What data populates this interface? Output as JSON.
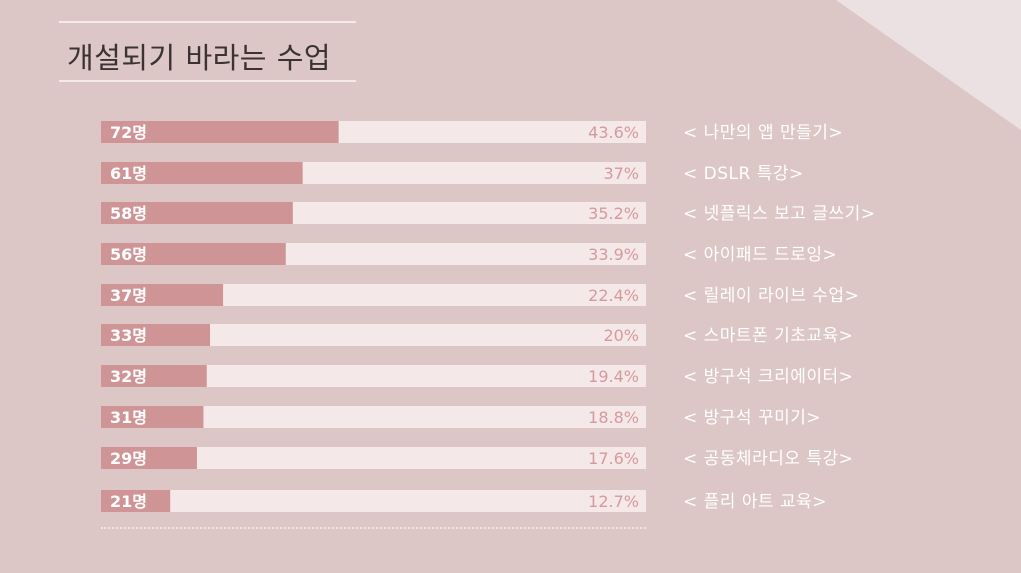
{
  "title": "개설되기 바라는 수업",
  "colors": {
    "background": "#ddc6c6",
    "bar_fill": "#cf9496",
    "bar_track": "#f5e8e8",
    "count_text": "#ffffff",
    "percent_text": "#d59a9c",
    "label_text": "#ffffff",
    "title_text": "#3b3333"
  },
  "chart_data": {
    "type": "bar",
    "orientation": "horizontal",
    "title": "개설되기 바라는 수업",
    "categories": [
      "< 나만의 앱 만들기>",
      "< DSLR 특강>",
      "< 넷플릭스 보고 글쓰기>",
      "< 아이패드 드로잉>",
      "< 릴레이 라이브 수업>",
      "< 스마트폰 기초교육>",
      "< 방구석 크리에이터>",
      "< 방구석 꾸미기>",
      "< 공동체라디오 특강>",
      "< 플리 아트 교육>"
    ],
    "count_labels": [
      "72명",
      "61명",
      "58명",
      "56명",
      "37명",
      "33명",
      "32명",
      "31명",
      "29명",
      "21명"
    ],
    "values": [
      72,
      61,
      58,
      56,
      37,
      33,
      32,
      31,
      29,
      21
    ],
    "percent_labels": [
      "43.6%",
      "37%",
      "35.2%",
      "33.9%",
      "22.4%",
      "20%",
      "19.4%",
      "18.8%",
      "17.6%",
      "12.7%"
    ],
    "percents": [
      43.6,
      37,
      35.2,
      33.9,
      22.4,
      20,
      19.4,
      18.8,
      17.6,
      12.7
    ],
    "xlim": [
      0,
      100
    ],
    "grid": false,
    "legend": "none"
  }
}
